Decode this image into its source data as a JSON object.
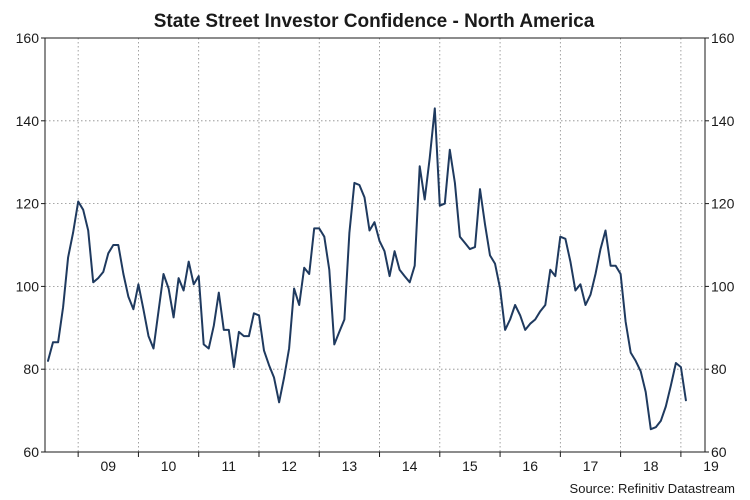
{
  "chart_data": {
    "type": "line",
    "title": "State Street Investor Confidence - North America",
    "source": "Source: Refinitiv Datastream",
    "xlabel": "",
    "ylabel": "",
    "ylim": [
      60,
      160
    ],
    "yticks": [
      60,
      80,
      100,
      120,
      140,
      160
    ],
    "xlim": [
      2008.45,
      2019.4
    ],
    "xticks": [
      {
        "label": "09",
        "x": 2009.5
      },
      {
        "label": "10",
        "x": 2010.5
      },
      {
        "label": "11",
        "x": 2011.5
      },
      {
        "label": "12",
        "x": 2012.5
      },
      {
        "label": "13",
        "x": 2013.5
      },
      {
        "label": "14",
        "x": 2014.5
      },
      {
        "label": "15",
        "x": 2015.5
      },
      {
        "label": "16",
        "x": 2016.5
      },
      {
        "label": "17",
        "x": 2017.5
      },
      {
        "label": "18",
        "x": 2018.5
      },
      {
        "label": "19",
        "x": 2019.5
      }
    ],
    "grid": true,
    "series": [
      {
        "name": "State Street Investor Confidence - North America",
        "color": "#1f3a5f",
        "x_start": 2008.5,
        "x_step": 0.0833333,
        "values": [
          82,
          86.5,
          86.5,
          95,
          107,
          113,
          120.5,
          118.5,
          113.5,
          101,
          102,
          103.5,
          108,
          110,
          110,
          103,
          97.5,
          94.5,
          100.5,
          94.5,
          88,
          85,
          94,
          103,
          99.5,
          92.5,
          102,
          99,
          106,
          100.5,
          102.5,
          86,
          85,
          90.5,
          98.5,
          89.5,
          89.5,
          80.5,
          89,
          88,
          88,
          93.5,
          93,
          84.5,
          81,
          78,
          72,
          78,
          85,
          99.5,
          95.5,
          104.5,
          103,
          114,
          114,
          112,
          104,
          86,
          89,
          92,
          113,
          125,
          124.5,
          121.5,
          113.5,
          115.5,
          111,
          108.5,
          102.5,
          108.5,
          104,
          102.5,
          101,
          105,
          129,
          121,
          131,
          143,
          119.5,
          120,
          133,
          125,
          112,
          110.5,
          109,
          109.5,
          123.5,
          115,
          107.5,
          105.5,
          99.5,
          89.5,
          92,
          95.5,
          93,
          89.5,
          91,
          92,
          94,
          95.5,
          104,
          102.5,
          112,
          111.5,
          106,
          99,
          100.5,
          95.5,
          98,
          103,
          109,
          113.5,
          105,
          105,
          103,
          91.5,
          84,
          82,
          79.5,
          74.5,
          65.5,
          66,
          67.5,
          71,
          76,
          81.5,
          80.5,
          72.5
        ]
      }
    ]
  }
}
